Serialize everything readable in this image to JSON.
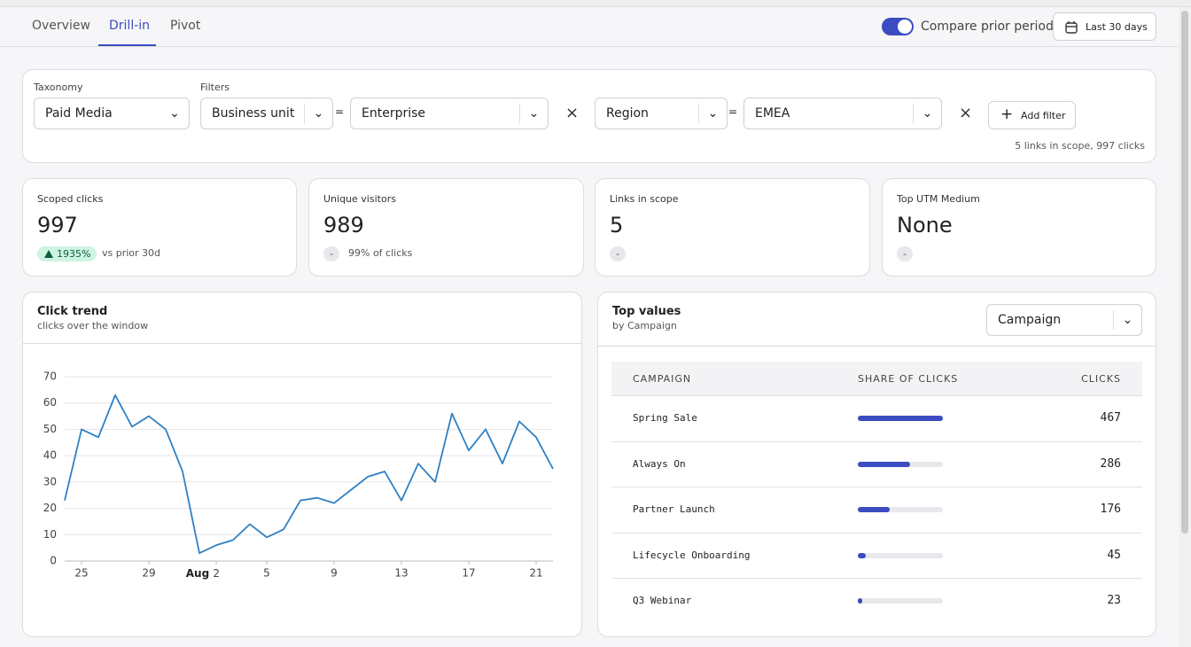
{
  "tabs": [
    "Overview",
    "Drill-in",
    "Pivot"
  ],
  "compare_label": "Compare prior period",
  "date_range": "Last 30 days",
  "filters": {
    "taxonomy_label": "Taxonomy",
    "taxonomy": "Paid Media",
    "filters_label": "Filters",
    "rows": [
      {
        "field": "Business unit",
        "op": "=",
        "value": "Enterprise"
      },
      {
        "field": "Region",
        "op": "=",
        "value": "EMEA"
      }
    ],
    "add": "Add filter",
    "summary": "5 links in scope, 997 clicks"
  },
  "kpis": [
    {
      "label": "Scoped clicks",
      "value": "997",
      "badge": "1935%",
      "note": "vs prior 30d"
    },
    {
      "label": "Unique visitors",
      "value": "989",
      "badge": "-",
      "note": "99% of clicks"
    },
    {
      "label": "Links in scope",
      "value": "5",
      "badge": "-"
    },
    {
      "label": "Top UTM Medium",
      "value": "None",
      "badge": "-"
    }
  ],
  "chart_data": {
    "type": "line",
    "title": "Click trend",
    "subtitle": "clicks over the window",
    "x": [
      "Jul 24",
      "Jul 25",
      "Jul 26",
      "Jul 27",
      "Jul 28",
      "Jul 29",
      "Jul 30",
      "Jul 31",
      "Aug 1",
      "Aug 2",
      "Aug 3",
      "Aug 4",
      "Aug 5",
      "Aug 6",
      "Aug 7",
      "Aug 8",
      "Aug 9",
      "Aug 10",
      "Aug 11",
      "Aug 12",
      "Aug 13",
      "Aug 14",
      "Aug 15",
      "Aug 16",
      "Aug 17",
      "Aug 18",
      "Aug 19",
      "Aug 20",
      "Aug 21",
      "Aug 22"
    ],
    "values": [
      23,
      50,
      47,
      63,
      51,
      55,
      50,
      34,
      3,
      6,
      8,
      14,
      9,
      12,
      23,
      24,
      22,
      27,
      32,
      34,
      23,
      37,
      30,
      56,
      42,
      50,
      37,
      53,
      47,
      35
    ],
    "color": "#2f80c3",
    "ylim": [
      0,
      70
    ],
    "yticks": [
      0,
      10,
      20,
      30,
      40,
      50,
      60,
      70
    ],
    "xticks": [
      {
        "value": "Jul 25",
        "label": "25"
      },
      {
        "value": "Jul 29",
        "label": "29"
      },
      {
        "value": "Aug 2",
        "label": "Aug 2"
      },
      {
        "value": "Aug 5",
        "label": "5"
      },
      {
        "value": "Aug 9",
        "label": "9"
      },
      {
        "value": "Aug 13",
        "label": "13"
      },
      {
        "value": "Aug 17",
        "label": "17"
      },
      {
        "value": "Aug 21",
        "label": "21"
      }
    ],
    "grid": true
  },
  "top_values": {
    "title": "Top values",
    "subtitle": "by Campaign",
    "dimension": "Campaign",
    "columns": [
      "CAMPAIGN",
      "SHARE OF CLICKS",
      "CLICKS"
    ],
    "rows": [
      {
        "name": "Spring Sale",
        "clicks": 467
      },
      {
        "name": "Always On",
        "clicks": 286
      },
      {
        "name": "Partner Launch",
        "clicks": 176
      },
      {
        "name": "Lifecycle Onboarding",
        "clicks": 45
      },
      {
        "name": "Q3 Webinar",
        "clicks": 23
      }
    ]
  }
}
